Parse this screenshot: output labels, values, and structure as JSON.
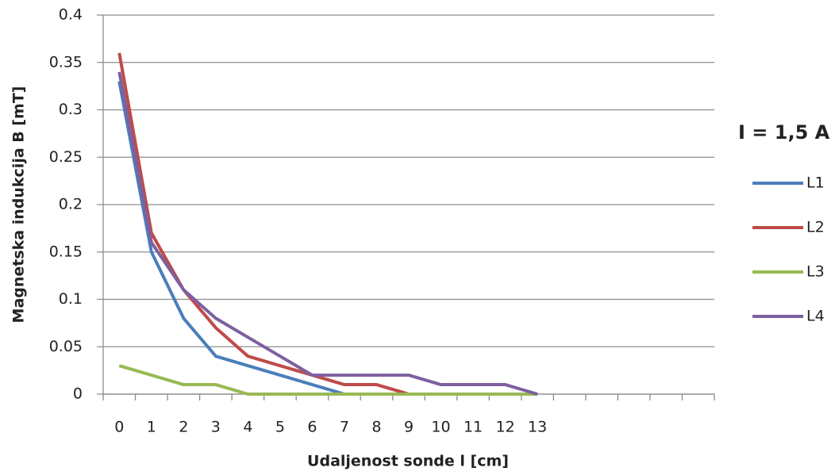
{
  "chart_data": {
    "type": "line",
    "x_label": "Udaljenost sonde l [cm]",
    "y_label": "Magnetska indukcija B [mT]",
    "legend_title": "I = 1,5 A",
    "legend_position": "right",
    "grid": true,
    "categories": [
      "0",
      "1",
      "2",
      "3",
      "4",
      "5",
      "6",
      "7",
      "8",
      "9",
      "10",
      "11",
      "12",
      "13",
      null,
      null,
      null,
      null,
      null
    ],
    "ylim": [
      0,
      0.4
    ],
    "yticks": [
      0,
      0.05,
      0.1,
      0.15,
      0.2,
      0.25,
      0.3,
      0.35,
      0.4
    ],
    "series": [
      {
        "name": "L1",
        "color": "#4a7ebb",
        "values": [
          0.33,
          0.15,
          0.08,
          0.04,
          0.03,
          0.02,
          0.01,
          0,
          null,
          null,
          null,
          null,
          null,
          null,
          null,
          null,
          null,
          null,
          null
        ]
      },
      {
        "name": "L2",
        "color": "#be4b48",
        "values": [
          0.36,
          0.17,
          0.11,
          0.07,
          0.04,
          0.03,
          0.02,
          0.01,
          0.01,
          0,
          null,
          null,
          null,
          null,
          null,
          null,
          null,
          null,
          null
        ]
      },
      {
        "name": "L3",
        "color": "#98b954",
        "values": [
          0.03,
          0.02,
          0.01,
          0.01,
          0,
          0,
          0,
          0,
          0,
          0,
          0,
          0,
          0,
          0,
          null,
          null,
          null,
          null,
          null
        ]
      },
      {
        "name": "L4",
        "color": "#7d60a0",
        "values": [
          0.34,
          0.16,
          0.11,
          0.08,
          0.06,
          0.04,
          0.02,
          0.02,
          0.02,
          0.02,
          0.01,
          0.01,
          0.01,
          0,
          null,
          null,
          null,
          null,
          null
        ]
      }
    ]
  }
}
